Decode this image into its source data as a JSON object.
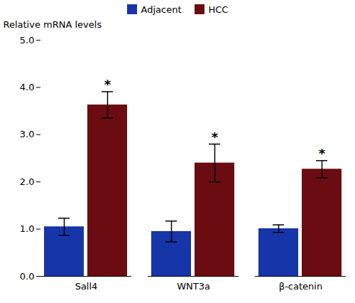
{
  "chart_data": {
    "type": "bar",
    "categories": [
      "Sall4",
      "WNT3a",
      "β-catenin"
    ],
    "series": [
      {
        "name": "Adjacent",
        "color": "#1635a8",
        "values": [
          1.05,
          0.95,
          1.01
        ],
        "errors": [
          0.18,
          0.22,
          0.08
        ]
      },
      {
        "name": "HCC",
        "color": "#6b0c12",
        "values": [
          3.63,
          2.4,
          2.27
        ],
        "errors": [
          0.28,
          0.4,
          0.18
        ]
      }
    ],
    "ylabel": "Relative mRNA levels",
    "ylim": [
      0,
      5
    ],
    "yticks": [
      0,
      1,
      2,
      3,
      4,
      5
    ],
    "annotations": [
      {
        "text": "*",
        "category": "Sall4",
        "series": "HCC"
      },
      {
        "text": "*",
        "category": "WNT3a",
        "series": "HCC"
      },
      {
        "text": "*",
        "category": "β-catenin",
        "series": "HCC"
      }
    ],
    "legend": "upper center",
    "grid": false
  }
}
